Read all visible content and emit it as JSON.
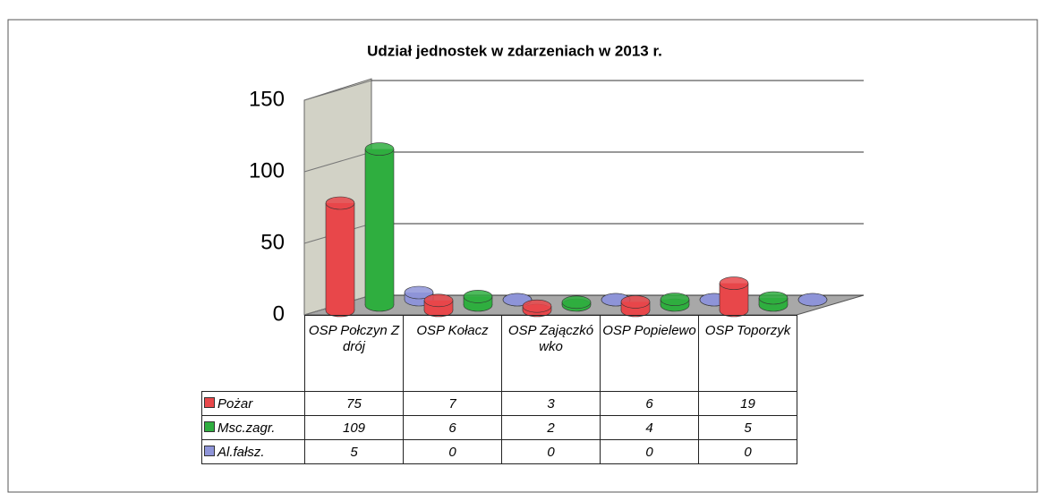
{
  "chart_data": {
    "type": "bar3d",
    "title": "Udział jednostek w zdarzeniach w 2013 r.",
    "categories": [
      "OSP Połczyn Zdrój",
      "OSP Kołacz",
      "OSP Zajączkówko",
      "OSP Popielewo",
      "OSP Toporzyk"
    ],
    "series": [
      {
        "name": "Pożar",
        "color": "#e8474a",
        "values": [
          75,
          7,
          3,
          6,
          19
        ]
      },
      {
        "name": "Msc.zagr.",
        "color": "#2fae3f",
        "values": [
          109,
          6,
          2,
          4,
          5
        ]
      },
      {
        "name": "Al.fałsz.",
        "color": "#8e94d8",
        "values": [
          5,
          0,
          0,
          0,
          0
        ]
      }
    ],
    "ylim": [
      0,
      150
    ],
    "yticks": [
      0,
      50,
      100,
      150
    ],
    "grid": true
  }
}
